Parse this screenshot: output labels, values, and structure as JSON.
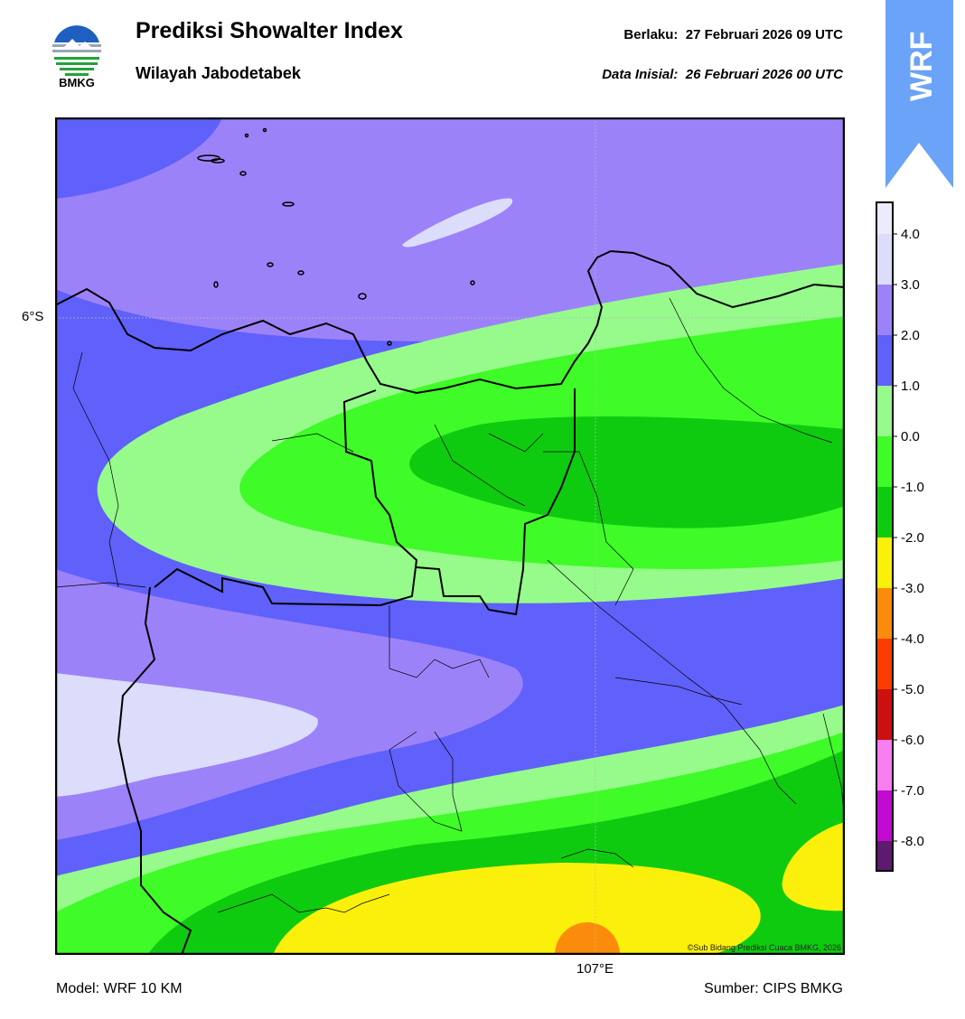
{
  "header": {
    "title": "Prediksi Showalter Index",
    "subtitle": "Wilayah Jabodetabek",
    "valid_label": "Berlaku:  27 Februari 2026 09 UTC",
    "init_label": "Data Inisial:  26 Februari 2026 00 UTC"
  },
  "logo": {
    "text": "BMKG",
    "icon": "bmkg-logo-icon"
  },
  "badge": {
    "text": "WRF",
    "color": "#6aa3f8"
  },
  "map": {
    "lat_label": "6°S",
    "lon_label": "107°E",
    "credit": "©Sub Bidang Prediksi Cuaca BMKG, 2026"
  },
  "colorbar": {
    "ticks": [
      "4.0",
      "3.0",
      "2.0",
      "1.0",
      "0.0",
      "-1.0",
      "-2.0",
      "-3.0",
      "-4.0",
      "-5.0",
      "-6.0",
      "-7.0",
      "-8.0"
    ],
    "colors": [
      "#ebebfb",
      "#dcdcfb",
      "#9c82f9",
      "#6060fa",
      "#96fb8b",
      "#3ffb27",
      "#0fcb10",
      "#fbf00b",
      "#fb8c0b",
      "#fb3c00",
      "#cc1010",
      "#f97ef0",
      "#c00ad0",
      "#5e1a6e"
    ]
  },
  "footer": {
    "model": "Model: WRF 10 KM",
    "source": "Sumber: CIPS BMKG"
  }
}
